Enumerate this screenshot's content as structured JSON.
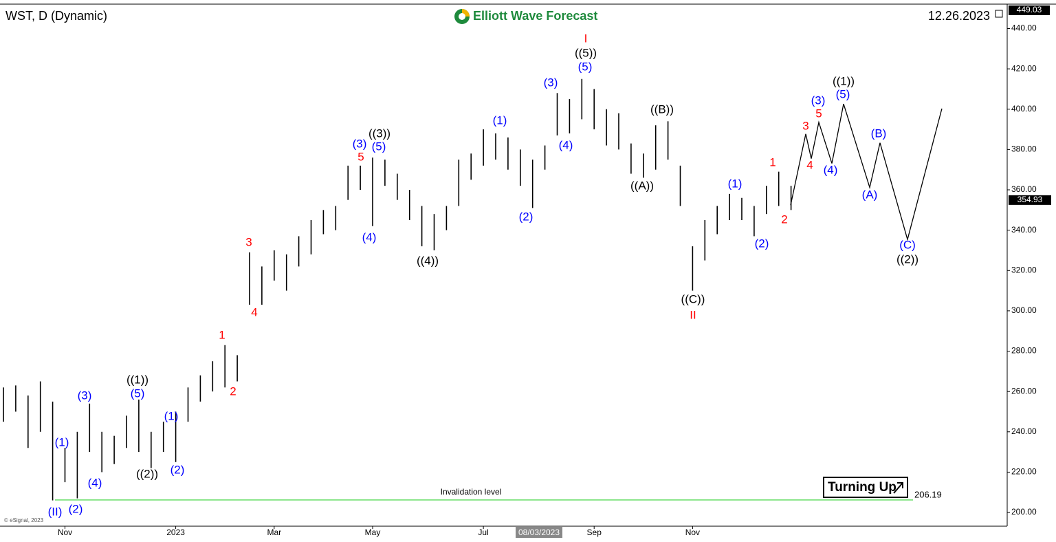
{
  "chart_data": {
    "type": "hlbar",
    "title": "WST, D (Dynamic)",
    "brand": "Elliott Wave Forecast",
    "date": "12.26.2023",
    "copyright": "© eSignal, 2023",
    "cursor_date": "08/03/2023",
    "badge": "Turning Up",
    "color": "#000000",
    "categories": [
      null,
      null,
      null,
      null,
      null,
      "Nov",
      null,
      null,
      null,
      null,
      null,
      null,
      null,
      null,
      "2023",
      null,
      null,
      null,
      null,
      null,
      null,
      null,
      "Mar",
      null,
      null,
      null,
      null,
      null,
      null,
      null,
      "May",
      null,
      null,
      null,
      null,
      null,
      null,
      null,
      null,
      "Jul",
      null,
      null,
      null,
      null,
      null,
      null,
      null,
      null,
      "Sep",
      null,
      null,
      null,
      null,
      null,
      null,
      null,
      "Nov",
      null,
      null,
      null,
      null,
      null,
      null,
      null,
      null
    ],
    "series": [
      {
        "name": "High",
        "values": [
          262,
          263,
          258,
          265,
          255,
          232,
          240,
          254,
          240,
          238,
          248,
          256,
          240,
          245,
          250,
          262,
          268,
          275,
          283,
          278,
          329,
          322,
          330,
          328,
          337,
          345,
          350,
          352,
          372,
          372,
          376,
          375,
          368,
          360,
          352,
          348,
          352,
          375,
          378,
          390,
          388,
          386,
          380,
          375,
          382,
          408,
          405,
          415,
          410,
          400,
          398,
          383,
          378,
          392,
          394,
          372,
          332,
          345,
          352,
          358,
          356,
          352,
          362,
          369,
          362
        ]
      },
      {
        "name": "Low",
        "values": [
          245,
          250,
          232,
          240,
          206,
          215,
          207,
          230,
          220,
          224,
          232,
          230,
          222,
          230,
          225,
          245,
          255,
          260,
          262,
          265,
          303,
          303,
          315,
          310,
          322,
          328,
          338,
          340,
          355,
          360,
          342,
          362,
          355,
          345,
          332,
          330,
          340,
          352,
          365,
          372,
          375,
          370,
          362,
          351,
          370,
          387,
          388,
          395,
          390,
          382,
          380,
          368,
          366,
          370,
          375,
          352,
          310,
          325,
          338,
          345,
          345,
          337,
          348,
          352,
          350
        ]
      }
    ],
    "projection": {
      "color": "#000000",
      "values": [
        352.4,
        387.7,
        375.5,
        393.5,
        373.1,
        402.6,
        361.2,
        383.3,
        335.4,
        400.3
      ]
    },
    "last_price": 354.93,
    "invalidation": {
      "label": "Invalidation level",
      "value": 206.19,
      "value_label": "206.19",
      "color": "#66dd66"
    },
    "ylim": [
      193.2,
      449.03
    ],
    "yticks": [
      {
        "value": 200,
        "label": "200.00"
      },
      {
        "value": 220,
        "label": "220.00"
      },
      {
        "value": 240,
        "label": "240.00"
      },
      {
        "value": 260,
        "label": "260.00"
      },
      {
        "value": 280,
        "label": "280.00"
      },
      {
        "value": 300,
        "label": "300.00"
      },
      {
        "value": 320,
        "label": "320.00"
      },
      {
        "value": 340,
        "label": "340.00"
      },
      {
        "value": 360,
        "label": "360.00"
      },
      {
        "value": 380,
        "label": "380.00"
      },
      {
        "value": 400,
        "label": "400.00"
      },
      {
        "value": 420,
        "label": "420.00"
      },
      {
        "value": 440,
        "label": "440.00"
      }
    ],
    "wave_labels": [
      {
        "text": "(II)",
        "color": "#0000ff"
      },
      {
        "text": "(2)",
        "color": "#0000ff"
      },
      {
        "text": "(1)",
        "color": "#0000ff"
      },
      {
        "text": "(3)",
        "color": "#0000ff"
      },
      {
        "text": "(4)",
        "color": "#0000ff"
      },
      {
        "text": "((1))",
        "color": "#000000"
      },
      {
        "text": "(5)",
        "color": "#0000ff"
      },
      {
        "text": "((2))",
        "color": "#000000"
      },
      {
        "text": "(1)",
        "color": "#0000ff"
      },
      {
        "text": "(2)",
        "color": "#0000ff"
      },
      {
        "text": "1",
        "color": "#ff0000"
      },
      {
        "text": "2",
        "color": "#ff0000"
      },
      {
        "text": "3",
        "color": "#ff0000"
      },
      {
        "text": "4",
        "color": "#ff0000"
      },
      {
        "text": "(3)",
        "color": "#0000ff"
      },
      {
        "text": "5",
        "color": "#ff0000"
      },
      {
        "text": "((3))",
        "color": "#000000"
      },
      {
        "text": "(5)",
        "color": "#0000ff"
      },
      {
        "text": "(4)",
        "color": "#0000ff"
      },
      {
        "text": "((4))",
        "color": "#000000"
      },
      {
        "text": "(1)",
        "color": "#0000ff"
      },
      {
        "text": "(2)",
        "color": "#0000ff"
      },
      {
        "text": "(3)",
        "color": "#0000ff"
      },
      {
        "text": "(4)",
        "color": "#0000ff"
      },
      {
        "text": "I",
        "color": "#ff0000"
      },
      {
        "text": "((5))",
        "color": "#000000"
      },
      {
        "text": "(5)",
        "color": "#0000ff"
      },
      {
        "text": "((B))",
        "color": "#000000"
      },
      {
        "text": "((A))",
        "color": "#000000"
      },
      {
        "text": "((C))",
        "color": "#000000"
      },
      {
        "text": "II",
        "color": "#ff0000"
      },
      {
        "text": "(1)",
        "color": "#0000ff"
      },
      {
        "text": "(2)",
        "color": "#0000ff"
      },
      {
        "text": "1",
        "color": "#ff0000"
      },
      {
        "text": "2",
        "color": "#ff0000"
      },
      {
        "text": "3",
        "color": "#ff0000"
      },
      {
        "text": "5",
        "color": "#ff0000"
      },
      {
        "text": "(3)",
        "color": "#0000ff"
      },
      {
        "text": "((1))",
        "color": "#000000"
      },
      {
        "text": "(5)",
        "color": "#0000ff"
      },
      {
        "text": "4",
        "color": "#ff0000"
      },
      {
        "text": "(4)",
        "color": "#0000ff"
      },
      {
        "text": "(B)",
        "color": "#0000ff"
      },
      {
        "text": "(A)",
        "color": "#0000ff"
      },
      {
        "text": "(C)",
        "color": "#0000ff"
      },
      {
        "text": "((2))",
        "color": "#000000"
      }
    ]
  }
}
